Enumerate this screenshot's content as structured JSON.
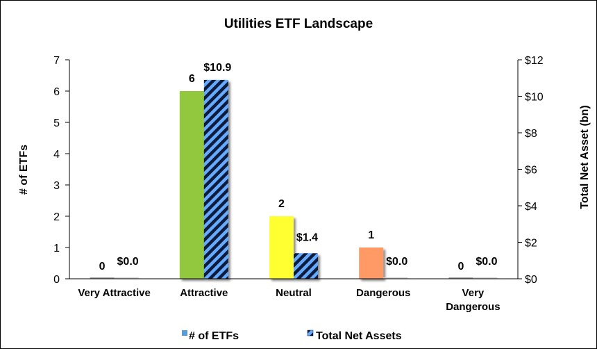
{
  "chart_data": {
    "type": "bar",
    "title": "Utilities ETF Landscape",
    "xlabel": "",
    "ylabel": "# of ETFs",
    "y2label": "Total Net Asset (bn)",
    "categories": [
      [
        "Very Attractive"
      ],
      [
        "Attractive"
      ],
      [
        "Neutral"
      ],
      [
        "Dangerous"
      ],
      [
        "Very",
        "Dangerous"
      ]
    ],
    "ylim": [
      0,
      7
    ],
    "y2lim": [
      0,
      12
    ],
    "yticks": [
      "0",
      "1",
      "2",
      "3",
      "4",
      "5",
      "6",
      "7"
    ],
    "y2ticks": [
      "$0",
      "$2",
      "$4",
      "$6",
      "$8",
      "$10",
      "$12"
    ],
    "grid": false,
    "legend_position": "bottom",
    "series": [
      {
        "name": "# of ETFs",
        "axis": "left",
        "values": [
          0,
          6,
          2,
          1,
          0
        ],
        "labels": [
          "0",
          "6",
          "2",
          "1",
          "0"
        ],
        "colors": [
          "#9e9e9e",
          "#92c83e",
          "#ffff33",
          "#ff9966",
          "#9e9e9e"
        ],
        "legend_color": "#5b9bd5"
      },
      {
        "name": "Total Net Assets",
        "axis": "right",
        "values": [
          0,
          10.9,
          1.4,
          0,
          0
        ],
        "labels": [
          "$0.0",
          "$10.9",
          "$1.4",
          "$0.0",
          "$0.0"
        ],
        "fill_stripe_a": "#66aaff",
        "fill_stripe_b": "#0a1a3a"
      }
    ]
  }
}
